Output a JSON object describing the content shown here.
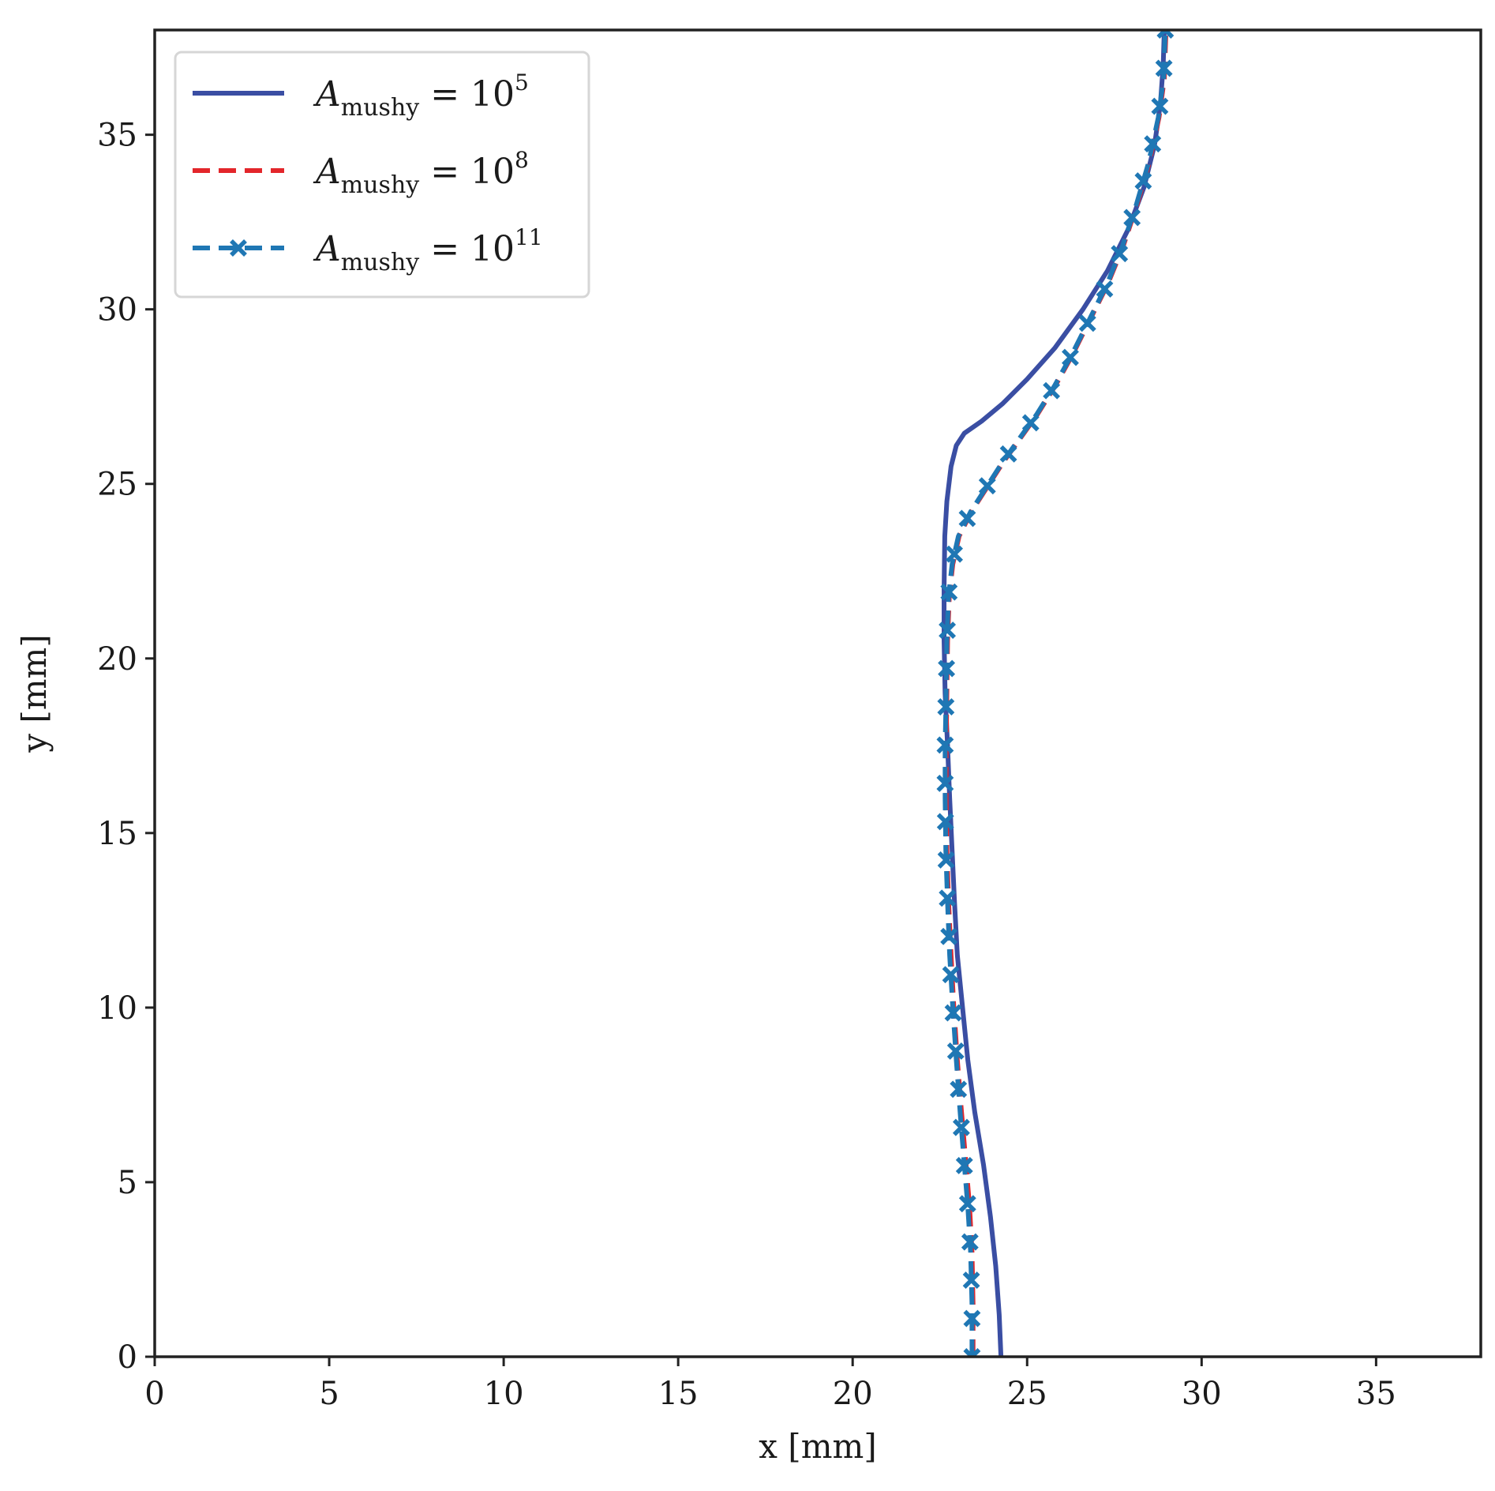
{
  "chart_data": {
    "type": "line",
    "title": "",
    "xlabel": "x [mm]",
    "ylabel": "y [mm]",
    "xlim": [
      0,
      38
    ],
    "ylim": [
      0,
      38
    ],
    "xticks": [
      "0",
      "5",
      "10",
      "15",
      "20",
      "25",
      "30",
      "35"
    ],
    "yticks": [
      "0",
      "5",
      "10",
      "15",
      "20",
      "25",
      "30",
      "35"
    ],
    "grid": false,
    "legend_position": "top-left",
    "series": [
      {
        "name": "A_mushy = 10^5",
        "legend": {
          "main": "A",
          "sub": "mushy",
          "eq": " = 10",
          "sup": "5"
        },
        "color": "#3a4ea3",
        "style": "solid",
        "marker": "none",
        "points": [
          [
            24.25,
            0
          ],
          [
            24.2,
            1.2
          ],
          [
            24.1,
            2.6
          ],
          [
            23.95,
            4.0
          ],
          [
            23.75,
            5.5
          ],
          [
            23.5,
            7.0
          ],
          [
            23.3,
            8.5
          ],
          [
            23.15,
            10.0
          ],
          [
            23.0,
            11.5
          ],
          [
            22.92,
            13.0
          ],
          [
            22.85,
            14.5
          ],
          [
            22.78,
            16.0
          ],
          [
            22.72,
            17.5
          ],
          [
            22.65,
            19.0
          ],
          [
            22.62,
            20.5
          ],
          [
            22.62,
            22.0
          ],
          [
            22.64,
            23.5
          ],
          [
            22.7,
            24.5
          ],
          [
            22.82,
            25.5
          ],
          [
            22.97,
            26.1
          ],
          [
            23.2,
            26.45
          ],
          [
            23.7,
            26.8
          ],
          [
            24.3,
            27.3
          ],
          [
            25.0,
            28.0
          ],
          [
            25.8,
            28.9
          ],
          [
            26.6,
            30.0
          ],
          [
            27.3,
            31.1
          ],
          [
            27.9,
            32.3
          ],
          [
            28.35,
            33.5
          ],
          [
            28.65,
            34.7
          ],
          [
            28.82,
            35.9
          ],
          [
            28.9,
            37.0
          ],
          [
            28.93,
            38.0
          ]
        ]
      },
      {
        "name": "A_mushy = 10^8",
        "legend": {
          "main": "A",
          "sub": "mushy",
          "eq": " = 10",
          "sup": "8"
        },
        "color": "#e3262b",
        "style": "dashed",
        "marker": "none",
        "points": [
          [
            23.45,
            0
          ],
          [
            23.45,
            1.5
          ],
          [
            23.42,
            3.0
          ],
          [
            23.35,
            4.3
          ],
          [
            23.25,
            5.5
          ],
          [
            23.12,
            7.0
          ],
          [
            23.0,
            8.5
          ],
          [
            22.9,
            10.0
          ],
          [
            22.82,
            11.5
          ],
          [
            22.75,
            13.0
          ],
          [
            22.7,
            14.5
          ],
          [
            22.68,
            16.0
          ],
          [
            22.68,
            17.5
          ],
          [
            22.7,
            19.0
          ],
          [
            22.72,
            20.5
          ],
          [
            22.77,
            21.8
          ],
          [
            22.87,
            22.7
          ],
          [
            23.05,
            23.5
          ],
          [
            23.4,
            24.2
          ],
          [
            23.85,
            24.9
          ],
          [
            24.3,
            25.6
          ],
          [
            24.8,
            26.3
          ],
          [
            25.3,
            27.0
          ],
          [
            25.8,
            27.8
          ],
          [
            26.3,
            28.7
          ],
          [
            26.8,
            29.7
          ],
          [
            27.3,
            30.7
          ],
          [
            27.75,
            31.8
          ],
          [
            28.15,
            33.0
          ],
          [
            28.5,
            34.2
          ],
          [
            28.78,
            35.5
          ],
          [
            28.93,
            36.6
          ],
          [
            28.98,
            38.0
          ]
        ]
      },
      {
        "name": "A_mushy = 10^11",
        "legend": {
          "main": "A",
          "sub": "mushy",
          "eq": " = 10",
          "sup": "11"
        },
        "color": "#1f77b4",
        "style": "dashed",
        "marker": "x",
        "points": [
          [
            23.42,
            0
          ],
          [
            23.42,
            1.5
          ],
          [
            23.38,
            3.0
          ],
          [
            23.3,
            4.3
          ],
          [
            23.2,
            5.5
          ],
          [
            23.08,
            7.0
          ],
          [
            22.97,
            8.5
          ],
          [
            22.87,
            10.0
          ],
          [
            22.78,
            11.5
          ],
          [
            22.72,
            13.0
          ],
          [
            22.67,
            14.5
          ],
          [
            22.65,
            16.0
          ],
          [
            22.65,
            17.5
          ],
          [
            22.68,
            19.0
          ],
          [
            22.7,
            20.5
          ],
          [
            22.75,
            21.8
          ],
          [
            22.85,
            22.7
          ],
          [
            23.03,
            23.5
          ],
          [
            23.38,
            24.2
          ],
          [
            23.83,
            24.9
          ],
          [
            24.28,
            25.6
          ],
          [
            24.78,
            26.3
          ],
          [
            25.28,
            27.0
          ],
          [
            25.78,
            27.8
          ],
          [
            26.28,
            28.7
          ],
          [
            26.78,
            29.7
          ],
          [
            27.28,
            30.7
          ],
          [
            27.73,
            31.8
          ],
          [
            28.13,
            33.0
          ],
          [
            28.48,
            34.2
          ],
          [
            28.76,
            35.5
          ],
          [
            28.91,
            36.6
          ],
          [
            28.96,
            38.0
          ]
        ]
      }
    ]
  }
}
